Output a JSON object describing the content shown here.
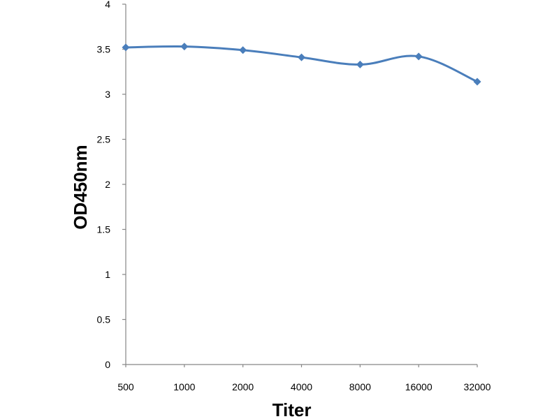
{
  "chart_data": {
    "type": "line",
    "categories": [
      "500",
      "1000",
      "2000",
      "4000",
      "8000",
      "16000",
      "32000"
    ],
    "series": [
      {
        "values": [
          3.52,
          3.53,
          3.49,
          3.41,
          3.33,
          3.42,
          3.14
        ],
        "color": "#4a7ebb",
        "marker": "diamond",
        "smooth": true
      }
    ],
    "xlabel": "Titer",
    "ylabel": "OD450nm",
    "ylim": [
      0,
      4
    ],
    "yticks": [
      "0",
      "0.5",
      "1",
      "1.5",
      "2",
      "2.5",
      "3",
      "3.5",
      "4"
    ],
    "grid": false,
    "legend": "none"
  }
}
